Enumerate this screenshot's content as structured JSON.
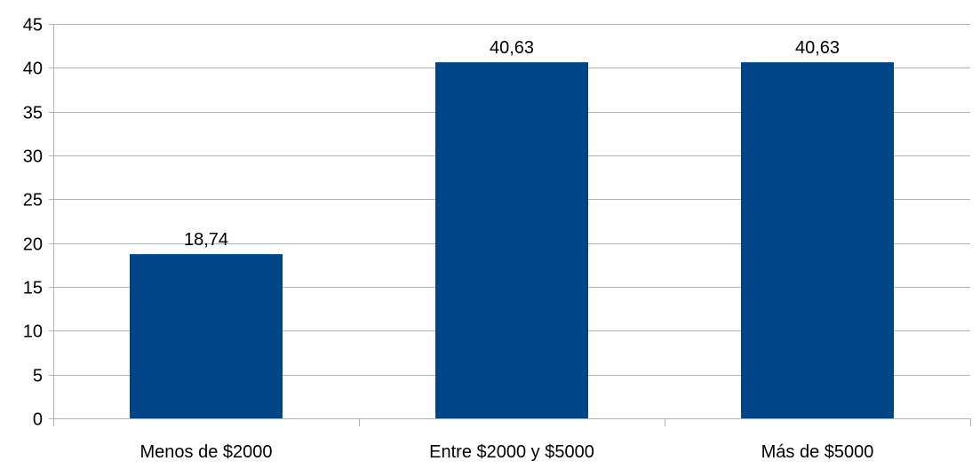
{
  "chart_data": {
    "type": "bar",
    "categories": [
      "Menos de $2000",
      "Entre $2000 y $5000",
      "Más de $5000"
    ],
    "values": [
      18.74,
      40.63,
      40.63
    ],
    "value_labels": [
      "18,74",
      "40,63",
      "40,63"
    ],
    "ylim": [
      0,
      45
    ],
    "y_ticks": [
      0,
      5,
      10,
      15,
      20,
      25,
      30,
      35,
      40,
      45
    ],
    "grid": true,
    "legend": "none",
    "title": "",
    "xlabel": "",
    "ylabel": ""
  },
  "colors": {
    "bar": "#004586",
    "grid": "#b3b3b3",
    "axis": "#b3b3b3"
  }
}
